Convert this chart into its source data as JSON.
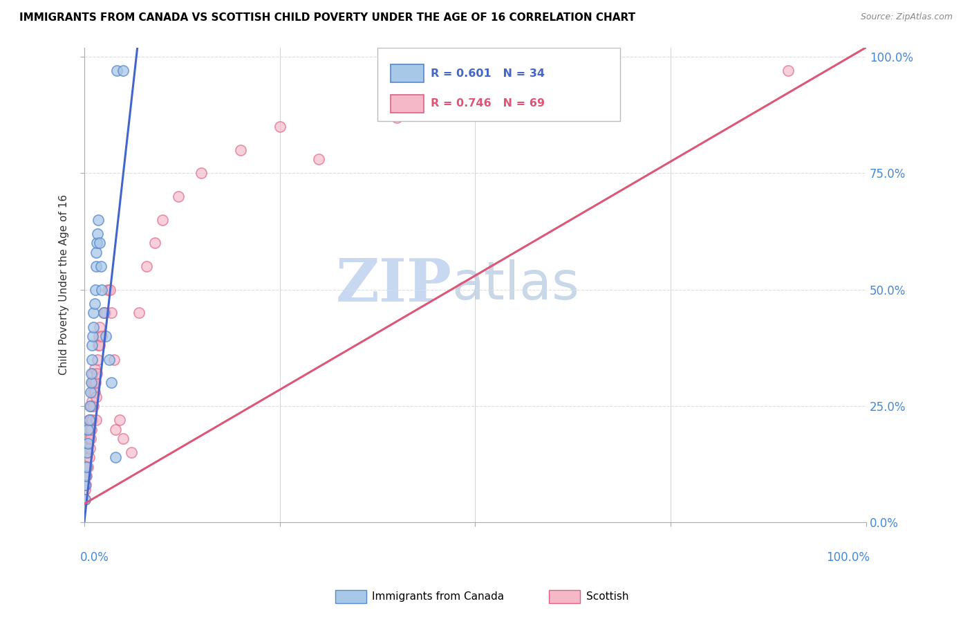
{
  "title": "IMMIGRANTS FROM CANADA VS SCOTTISH CHILD POVERTY UNDER THE AGE OF 16 CORRELATION CHART",
  "source": "Source: ZipAtlas.com",
  "ylabel": "Child Poverty Under the Age of 16",
  "legend_label1": "Immigrants from Canada",
  "legend_label2": "Scottish",
  "R1": 0.601,
  "N1": 34,
  "R2": 0.746,
  "N2": 69,
  "color_blue_fill": "#a8c8e8",
  "color_pink_fill": "#f4b8c8",
  "color_blue_edge": "#5588cc",
  "color_pink_edge": "#e06080",
  "color_blue_line": "#4466cc",
  "color_pink_line": "#dd5577",
  "watermark_zip_color": "#c8d8f0",
  "watermark_atlas_color": "#c8d8e8",
  "blue_x": [
    0.001,
    0.001,
    0.002,
    0.003,
    0.004,
    0.005,
    0.005,
    0.006,
    0.007,
    0.008,
    0.009,
    0.009,
    0.01,
    0.01,
    0.011,
    0.012,
    0.012,
    0.013,
    0.014,
    0.015,
    0.015,
    0.016,
    0.017,
    0.018,
    0.02,
    0.021,
    0.022,
    0.025,
    0.028,
    0.032,
    0.035,
    0.04,
    0.042,
    0.05
  ],
  "blue_y": [
    0.05,
    0.08,
    0.1,
    0.12,
    0.15,
    0.17,
    0.2,
    0.22,
    0.25,
    0.28,
    0.3,
    0.32,
    0.35,
    0.38,
    0.4,
    0.42,
    0.45,
    0.47,
    0.5,
    0.55,
    0.58,
    0.6,
    0.62,
    0.65,
    0.6,
    0.55,
    0.5,
    0.45,
    0.4,
    0.35,
    0.3,
    0.14,
    0.97,
    0.97
  ],
  "pink_x": [
    0.001,
    0.001,
    0.001,
    0.001,
    0.001,
    0.002,
    0.002,
    0.002,
    0.002,
    0.003,
    0.003,
    0.003,
    0.004,
    0.004,
    0.004,
    0.005,
    0.005,
    0.005,
    0.006,
    0.006,
    0.006,
    0.007,
    0.007,
    0.008,
    0.008,
    0.008,
    0.009,
    0.009,
    0.01,
    0.01,
    0.01,
    0.011,
    0.011,
    0.012,
    0.012,
    0.013,
    0.013,
    0.014,
    0.015,
    0.015,
    0.016,
    0.017,
    0.018,
    0.019,
    0.02,
    0.02,
    0.022,
    0.025,
    0.027,
    0.03,
    0.033,
    0.035,
    0.038,
    0.04,
    0.045,
    0.05,
    0.06,
    0.07,
    0.08,
    0.09,
    0.1,
    0.12,
    0.15,
    0.2,
    0.25,
    0.3,
    0.4,
    0.5,
    0.9
  ],
  "pink_y": [
    0.05,
    0.07,
    0.1,
    0.12,
    0.15,
    0.08,
    0.12,
    0.15,
    0.18,
    0.1,
    0.12,
    0.16,
    0.14,
    0.17,
    0.2,
    0.12,
    0.15,
    0.18,
    0.14,
    0.18,
    0.22,
    0.16,
    0.2,
    0.18,
    0.22,
    0.25,
    0.2,
    0.25,
    0.22,
    0.26,
    0.3,
    0.28,
    0.32,
    0.25,
    0.3,
    0.28,
    0.33,
    0.3,
    0.22,
    0.27,
    0.32,
    0.35,
    0.38,
    0.4,
    0.38,
    0.42,
    0.4,
    0.45,
    0.45,
    0.5,
    0.5,
    0.45,
    0.35,
    0.2,
    0.22,
    0.18,
    0.15,
    0.45,
    0.55,
    0.6,
    0.65,
    0.7,
    0.75,
    0.8,
    0.85,
    0.78,
    0.87,
    0.88,
    0.97
  ],
  "blue_line_x": [
    0.0,
    0.068
  ],
  "blue_line_y": [
    0.0,
    1.02
  ],
  "pink_line_x": [
    0.0,
    1.0
  ],
  "pink_line_y": [
    0.04,
    1.02
  ],
  "xlim": [
    0.0,
    1.0
  ],
  "ylim": [
    0.0,
    1.02
  ],
  "xticks": [
    0.0,
    0.25,
    0.5,
    0.75,
    1.0
  ],
  "yticks": [
    0.0,
    0.25,
    0.5,
    0.75,
    1.0
  ],
  "xtick_labels": [
    "0.0%",
    "",
    "",
    "",
    "100.0%"
  ],
  "ytick_labels": [
    "0.0%",
    "25.0%",
    "50.0%",
    "75.0%",
    "100.0%"
  ]
}
